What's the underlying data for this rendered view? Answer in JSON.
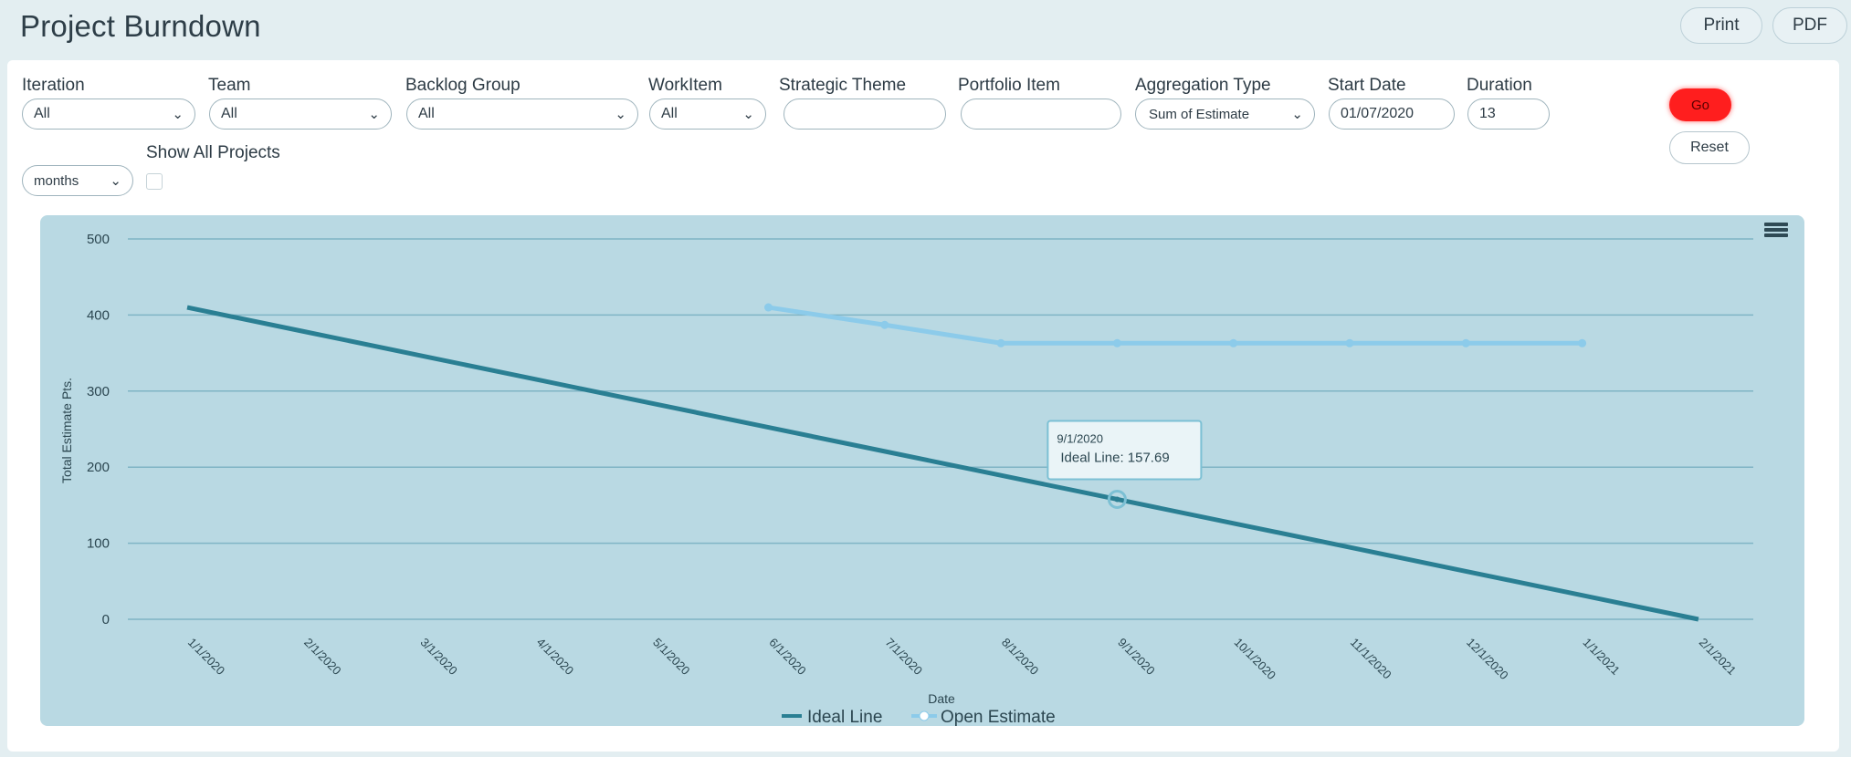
{
  "header": {
    "title": "Project Burndown",
    "print_label": "Print",
    "pdf_label": "PDF"
  },
  "filters": {
    "iteration": {
      "label": "Iteration",
      "value": "All"
    },
    "team": {
      "label": "Team",
      "value": "All"
    },
    "backlog_group": {
      "label": "Backlog Group",
      "value": "All"
    },
    "workitem": {
      "label": "WorkItem",
      "value": "All"
    },
    "strategic_theme": {
      "label": "Strategic Theme",
      "value": ""
    },
    "portfolio_item": {
      "label": "Portfolio Item",
      "value": ""
    },
    "aggregation_type": {
      "label": "Aggregation Type",
      "value": "Sum of Estimate"
    },
    "start_date": {
      "label": "Start Date",
      "value": "01/07/2020"
    },
    "duration": {
      "label": "Duration",
      "value": "13"
    },
    "period": {
      "value": "months"
    },
    "show_all_projects": {
      "label": "Show All Projects",
      "checked": false
    },
    "go_label": "Go",
    "reset_label": "Reset"
  },
  "colors": {
    "go_button": "#ff1e1e",
    "chart_background": "#b9d9e3",
    "ideal_line": "#2a7f93",
    "open_estimate": "#8ccbea"
  },
  "icons": {
    "chart_menu": "hamburger-menu-icon"
  },
  "chart_data": {
    "type": "line",
    "xlabel": "Date",
    "ylabel": "Total Estimate Pts.",
    "ylim": [
      0,
      500
    ],
    "yticks": [
      0,
      100,
      200,
      300,
      400,
      500
    ],
    "categories": [
      "1/1/2020",
      "2/1/2020",
      "3/1/2020",
      "4/1/2020",
      "5/1/2020",
      "6/1/2020",
      "7/1/2020",
      "8/1/2020",
      "9/1/2020",
      "10/1/2020",
      "11/1/2020",
      "12/1/2020",
      "1/1/2021",
      "2/1/2021"
    ],
    "legend_position": "bottom",
    "grid": true,
    "series": [
      {
        "name": "Ideal Line",
        "values": [
          410,
          378.46,
          346.92,
          315.38,
          283.85,
          252.31,
          220.77,
          189.23,
          157.69,
          126.15,
          94.62,
          63.08,
          31.54,
          0
        ]
      },
      {
        "name": "Open Estimate",
        "values": [
          null,
          null,
          null,
          null,
          null,
          410,
          387,
          363,
          363,
          363,
          363,
          363,
          363,
          null
        ]
      }
    ],
    "tooltip": {
      "date": "9/1/2020",
      "text": "Ideal Line: 157.69",
      "category_index": 8
    }
  }
}
